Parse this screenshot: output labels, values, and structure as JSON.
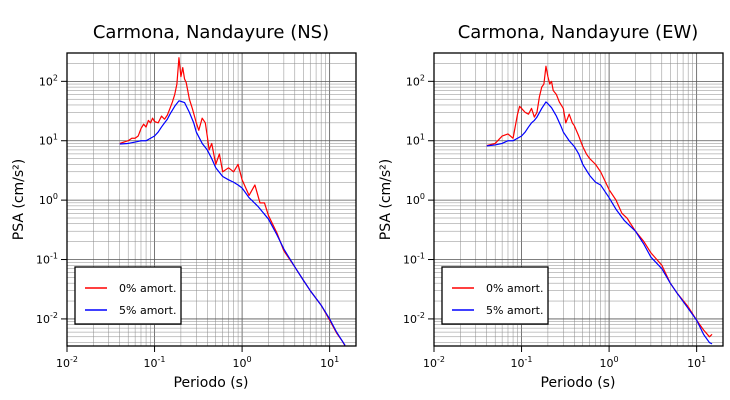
{
  "chart_data": [
    {
      "type": "line",
      "title": "Carmona, Nandayure (NS)",
      "xlabel": "Periodo (s)",
      "ylabel": "PSA (cm/s²)",
      "x_scale": "log",
      "y_scale": "log",
      "xlim": [
        0.01,
        20
      ],
      "ylim": [
        0.0035,
        300
      ],
      "grid": true,
      "legend_position": "bottom-left",
      "x_ticks": [
        0.01,
        0.1,
        1,
        10
      ],
      "y_ticks": [
        0.01,
        0.1,
        1,
        10,
        100
      ],
      "series": [
        {
          "name": "0% amort.",
          "color": "#ff0000",
          "points": [
            [
              0.04,
              9
            ],
            [
              0.05,
              10
            ],
            [
              0.055,
              11
            ],
            [
              0.06,
              11
            ],
            [
              0.065,
              12
            ],
            [
              0.07,
              16
            ],
            [
              0.075,
              19
            ],
            [
              0.08,
              17
            ],
            [
              0.085,
              22
            ],
            [
              0.09,
              20
            ],
            [
              0.095,
              24
            ],
            [
              0.1,
              21
            ],
            [
              0.11,
              20
            ],
            [
              0.12,
              26
            ],
            [
              0.13,
              23
            ],
            [
              0.14,
              27
            ],
            [
              0.15,
              35
            ],
            [
              0.16,
              45
            ],
            [
              0.17,
              60
            ],
            [
              0.18,
              90
            ],
            [
              0.19,
              250
            ],
            [
              0.2,
              120
            ],
            [
              0.21,
              170
            ],
            [
              0.22,
              110
            ],
            [
              0.23,
              95
            ],
            [
              0.25,
              50
            ],
            [
              0.27,
              35
            ],
            [
              0.3,
              20
            ],
            [
              0.32,
              15
            ],
            [
              0.35,
              24
            ],
            [
              0.38,
              20
            ],
            [
              0.4,
              12
            ],
            [
              0.42,
              7
            ],
            [
              0.45,
              9
            ],
            [
              0.5,
              4
            ],
            [
              0.55,
              6
            ],
            [
              0.6,
              3
            ],
            [
              0.7,
              3.5
            ],
            [
              0.8,
              3
            ],
            [
              0.9,
              4
            ],
            [
              1,
              2.2
            ],
            [
              1.2,
              1.2
            ],
            [
              1.4,
              1.8
            ],
            [
              1.6,
              0.9
            ],
            [
              1.8,
              0.9
            ],
            [
              2,
              0.55
            ],
            [
              2.5,
              0.28
            ],
            [
              3,
              0.14
            ],
            [
              4,
              0.075
            ],
            [
              5,
              0.045
            ],
            [
              6,
              0.03
            ],
            [
              8,
              0.017
            ],
            [
              10,
              0.0095
            ],
            [
              12,
              0.0058
            ],
            [
              14,
              0.0042
            ],
            [
              15,
              0.0035
            ]
          ]
        },
        {
          "name": "5% amort.",
          "color": "#0000ff",
          "points": [
            [
              0.04,
              8.8
            ],
            [
              0.05,
              9
            ],
            [
              0.06,
              9.5
            ],
            [
              0.07,
              10
            ],
            [
              0.08,
              10
            ],
            [
              0.09,
              11
            ],
            [
              0.1,
              12
            ],
            [
              0.11,
              14
            ],
            [
              0.12,
              17
            ],
            [
              0.13,
              20
            ],
            [
              0.14,
              23
            ],
            [
              0.15,
              28
            ],
            [
              0.17,
              38
            ],
            [
              0.19,
              47
            ],
            [
              0.2,
              46
            ],
            [
              0.22,
              44
            ],
            [
              0.25,
              30
            ],
            [
              0.28,
              20
            ],
            [
              0.3,
              14
            ],
            [
              0.35,
              9
            ],
            [
              0.4,
              7
            ],
            [
              0.45,
              5
            ],
            [
              0.5,
              3.5
            ],
            [
              0.6,
              2.5
            ],
            [
              0.7,
              2.2
            ],
            [
              0.8,
              2
            ],
            [
              0.9,
              1.8
            ],
            [
              1,
              1.6
            ],
            [
              1.2,
              1.1
            ],
            [
              1.5,
              0.8
            ],
            [
              2,
              0.48
            ],
            [
              2.5,
              0.26
            ],
            [
              3,
              0.15
            ],
            [
              4,
              0.075
            ],
            [
              5,
              0.045
            ],
            [
              6,
              0.03
            ],
            [
              8,
              0.017
            ],
            [
              10,
              0.01
            ],
            [
              12,
              0.006
            ],
            [
              14,
              0.0042
            ],
            [
              15,
              0.0036
            ]
          ]
        }
      ]
    },
    {
      "type": "line",
      "title": "Carmona, Nandayure (EW)",
      "xlabel": "Periodo (s)",
      "ylabel": "PSA (cm/s²)",
      "x_scale": "log",
      "y_scale": "log",
      "xlim": [
        0.01,
        20
      ],
      "ylim": [
        0.0035,
        300
      ],
      "grid": true,
      "legend_position": "bottom-left",
      "x_ticks": [
        0.01,
        0.1,
        1,
        10
      ],
      "y_ticks": [
        0.01,
        0.1,
        1,
        10,
        100
      ],
      "series": [
        {
          "name": "0% amort.",
          "color": "#ff0000",
          "points": [
            [
              0.04,
              8.3
            ],
            [
              0.05,
              9
            ],
            [
              0.06,
              12
            ],
            [
              0.07,
              13
            ],
            [
              0.08,
              11
            ],
            [
              0.09,
              28
            ],
            [
              0.095,
              38
            ],
            [
              0.1,
              35
            ],
            [
              0.11,
              30
            ],
            [
              0.12,
              28
            ],
            [
              0.13,
              35
            ],
            [
              0.14,
              25
            ],
            [
              0.15,
              30
            ],
            [
              0.16,
              55
            ],
            [
              0.17,
              80
            ],
            [
              0.18,
              90
            ],
            [
              0.19,
              180
            ],
            [
              0.2,
              120
            ],
            [
              0.21,
              90
            ],
            [
              0.22,
              100
            ],
            [
              0.23,
              70
            ],
            [
              0.25,
              60
            ],
            [
              0.27,
              45
            ],
            [
              0.3,
              35
            ],
            [
              0.32,
              20
            ],
            [
              0.35,
              28
            ],
            [
              0.38,
              20
            ],
            [
              0.4,
              18
            ],
            [
              0.45,
              12
            ],
            [
              0.5,
              8
            ],
            [
              0.55,
              6
            ],
            [
              0.6,
              5
            ],
            [
              0.7,
              4
            ],
            [
              0.8,
              3
            ],
            [
              1,
              1.5
            ],
            [
              1.2,
              1
            ],
            [
              1.4,
              0.6
            ],
            [
              1.6,
              0.5
            ],
            [
              2,
              0.3
            ],
            [
              2.5,
              0.2
            ],
            [
              3,
              0.13
            ],
            [
              4,
              0.08
            ],
            [
              5,
              0.04
            ],
            [
              6,
              0.027
            ],
            [
              8,
              0.016
            ],
            [
              10,
              0.0095
            ],
            [
              12,
              0.0065
            ],
            [
              14,
              0.005
            ],
            [
              15,
              0.0055
            ]
          ]
        },
        {
          "name": "5% amort.",
          "color": "#0000ff",
          "points": [
            [
              0.04,
              8.2
            ],
            [
              0.05,
              8.5
            ],
            [
              0.06,
              9
            ],
            [
              0.07,
              10
            ],
            [
              0.08,
              10
            ],
            [
              0.09,
              11
            ],
            [
              0.1,
              12
            ],
            [
              0.11,
              14
            ],
            [
              0.12,
              17
            ],
            [
              0.13,
              20
            ],
            [
              0.14,
              22
            ],
            [
              0.15,
              25
            ],
            [
              0.17,
              35
            ],
            [
              0.19,
              45
            ],
            [
              0.2,
              42
            ],
            [
              0.22,
              36
            ],
            [
              0.25,
              26
            ],
            [
              0.28,
              18
            ],
            [
              0.3,
              14
            ],
            [
              0.35,
              10
            ],
            [
              0.4,
              8
            ],
            [
              0.45,
              6
            ],
            [
              0.5,
              4
            ],
            [
              0.6,
              2.6
            ],
            [
              0.7,
              2
            ],
            [
              0.8,
              1.8
            ],
            [
              1,
              1.1
            ],
            [
              1.2,
              0.7
            ],
            [
              1.5,
              0.45
            ],
            [
              2,
              0.3
            ],
            [
              2.5,
              0.18
            ],
            [
              3,
              0.11
            ],
            [
              4,
              0.07
            ],
            [
              5,
              0.04
            ],
            [
              6,
              0.027
            ],
            [
              8,
              0.015
            ],
            [
              10,
              0.0095
            ],
            [
              12,
              0.0055
            ],
            [
              14,
              0.004
            ],
            [
              15,
              0.0038
            ]
          ]
        }
      ]
    }
  ]
}
